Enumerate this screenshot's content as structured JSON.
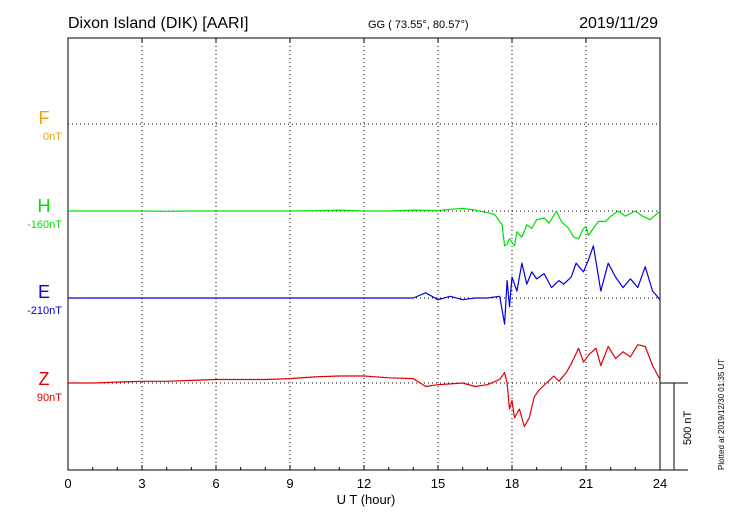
{
  "header": {
    "station": "Dixon Island (DIK)  [AARI]",
    "coords": "GG ( 73.55°,  80.57°)",
    "date": "2019/11/29"
  },
  "side_note": "Plotted at 2019/12/30 01:35 UT",
  "chart_data": {
    "type": "line",
    "xlabel": "U T (hour)",
    "xlim": [
      0,
      24
    ],
    "xticks": [
      0,
      3,
      6,
      9,
      12,
      15,
      18,
      21,
      24
    ],
    "xtick_labels": [
      "0",
      "3",
      "6",
      "9",
      "12",
      "15",
      "18",
      "21",
      "24"
    ],
    "grid": true,
    "scale_bar": {
      "label": "500 nT",
      "value_nT": 500
    },
    "series": [
      {
        "name": "F",
        "baseline": "0nT",
        "color": "#f0a000",
        "x": [],
        "values": []
      },
      {
        "name": "H",
        "baseline": "-160nT",
        "color": "#00e000",
        "x": [
          0,
          1,
          2,
          3,
          4,
          5,
          6,
          7,
          8,
          9,
          10,
          11,
          12,
          13,
          14,
          15,
          15.5,
          16,
          16.5,
          17,
          17.3,
          17.6,
          17.7,
          17.8,
          17.9,
          18.0,
          18.1,
          18.2,
          18.4,
          18.6,
          18.8,
          19.0,
          19.3,
          19.5,
          19.8,
          20.0,
          20.3,
          20.5,
          20.7,
          20.9,
          21.0,
          21.1,
          21.3,
          21.5,
          21.8,
          22.0,
          22.3,
          22.6,
          23.0,
          23.3,
          23.6,
          24.0
        ],
        "values": [
          0,
          0,
          0,
          0,
          -2,
          0,
          0,
          0,
          0,
          0,
          2,
          5,
          0,
          0,
          5,
          3,
          10,
          15,
          5,
          -10,
          -20,
          -80,
          -200,
          -190,
          -160,
          -180,
          -200,
          -120,
          -150,
          -80,
          -100,
          -50,
          -40,
          -70,
          0,
          -60,
          -100,
          -150,
          -160,
          -100,
          -90,
          -140,
          -100,
          -60,
          -60,
          -30,
          0,
          -30,
          0,
          -30,
          -50,
          0
        ]
      },
      {
        "name": "E",
        "baseline": "-210nT",
        "color": "#0000e0",
        "x": [
          0,
          1,
          2,
          3,
          4,
          5,
          6,
          7,
          8,
          9,
          10,
          11,
          12,
          13,
          14,
          14.5,
          15,
          15.5,
          16,
          16.5,
          17,
          17.5,
          17.7,
          17.8,
          17.9,
          18.0,
          18.2,
          18.4,
          18.6,
          18.8,
          19.0,
          19.3,
          19.6,
          19.9,
          20.1,
          20.4,
          20.6,
          20.9,
          21.1,
          21.3,
          21.6,
          21.9,
          22.2,
          22.5,
          22.8,
          23.1,
          23.4,
          23.7,
          24.0
        ],
        "values": [
          0,
          0,
          0,
          0,
          0,
          0,
          0,
          0,
          0,
          0,
          0,
          0,
          0,
          0,
          0,
          30,
          -10,
          10,
          -10,
          0,
          0,
          10,
          -150,
          100,
          -50,
          120,
          40,
          200,
          80,
          150,
          110,
          140,
          60,
          100,
          80,
          120,
          200,
          150,
          220,
          300,
          40,
          200,
          120,
          60,
          110,
          60,
          180,
          40,
          -10
        ]
      },
      {
        "name": "Z",
        "baseline": "90nT",
        "color": "#e00000",
        "x": [
          0,
          1,
          2,
          3,
          4,
          5,
          6,
          7,
          8,
          9,
          10,
          11,
          12,
          13,
          14,
          14.5,
          15,
          15.5,
          16,
          16.5,
          17,
          17.5,
          17.7,
          17.8,
          17.9,
          18.0,
          18.1,
          18.3,
          18.5,
          18.7,
          18.9,
          19.1,
          19.4,
          19.7,
          19.9,
          20.2,
          20.4,
          20.7,
          20.9,
          21.1,
          21.4,
          21.6,
          21.9,
          22.2,
          22.5,
          22.8,
          23.1,
          23.4,
          23.7,
          24.0
        ],
        "values": [
          0,
          0,
          5,
          10,
          10,
          15,
          20,
          20,
          20,
          25,
          35,
          40,
          40,
          30,
          25,
          -20,
          -10,
          -5,
          0,
          -20,
          -10,
          20,
          60,
          0,
          -150,
          -100,
          -200,
          -150,
          -250,
          -200,
          -80,
          -40,
          0,
          40,
          10,
          60,
          110,
          200,
          120,
          160,
          200,
          100,
          210,
          140,
          180,
          150,
          220,
          210,
          100,
          20
        ]
      }
    ]
  }
}
